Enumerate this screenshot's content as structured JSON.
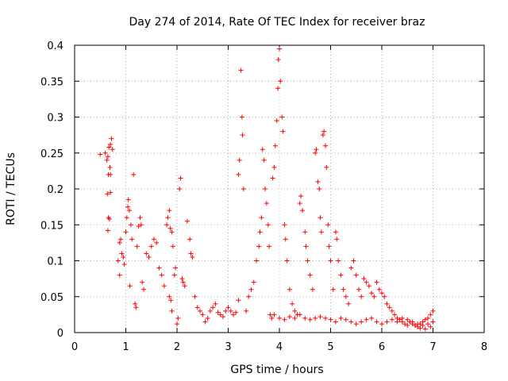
{
  "chart_data": {
    "type": "scatter",
    "title": "Day 274 of 2014, Rate Of TEC Index for receiver braz",
    "xlabel": "GPS time / hours",
    "ylabel": "ROTI / TECUs",
    "xlim": [
      0,
      8
    ],
    "ylim": [
      0,
      0.4
    ],
    "x_ticks": [
      "0",
      "1",
      "2",
      "3",
      "4",
      "5",
      "6",
      "7",
      "8"
    ],
    "y_ticks": [
      "0",
      "0.05",
      "0.1",
      "0.15",
      "0.2",
      "0.25",
      "0.3",
      "0.35",
      "0.4"
    ],
    "grid": true,
    "marker": "+",
    "color": "#ff0000",
    "series": [
      {
        "name": "ROTI",
        "points": [
          [
            0.5,
            0.248
          ],
          [
            0.6,
            0.25
          ],
          [
            0.63,
            0.24
          ],
          [
            0.65,
            0.245
          ],
          [
            0.67,
            0.258
          ],
          [
            0.7,
            0.262
          ],
          [
            0.72,
            0.27
          ],
          [
            0.74,
            0.255
          ],
          [
            0.66,
            0.22
          ],
          [
            0.69,
            0.23
          ],
          [
            0.7,
            0.22
          ],
          [
            0.64,
            0.193
          ],
          [
            0.7,
            0.195
          ],
          [
            0.66,
            0.16
          ],
          [
            0.68,
            0.158
          ],
          [
            0.65,
            0.142
          ],
          [
            0.85,
            0.1
          ],
          [
            0.88,
            0.125
          ],
          [
            0.9,
            0.13
          ],
          [
            0.92,
            0.11
          ],
          [
            0.95,
            0.105
          ],
          [
            0.97,
            0.095
          ],
          [
            0.88,
            0.08
          ],
          [
            1.0,
            0.14
          ],
          [
            1.02,
            0.16
          ],
          [
            1.04,
            0.175
          ],
          [
            1.05,
            0.185
          ],
          [
            1.07,
            0.17
          ],
          [
            1.1,
            0.15
          ],
          [
            1.12,
            0.13
          ],
          [
            1.15,
            0.22
          ],
          [
            1.08,
            0.065
          ],
          [
            1.18,
            0.04
          ],
          [
            1.2,
            0.035
          ],
          [
            1.22,
            0.12
          ],
          [
            1.25,
            0.148
          ],
          [
            1.28,
            0.16
          ],
          [
            1.3,
            0.15
          ],
          [
            1.32,
            0.07
          ],
          [
            1.35,
            0.06
          ],
          [
            1.4,
            0.11
          ],
          [
            1.45,
            0.105
          ],
          [
            1.5,
            0.12
          ],
          [
            1.55,
            0.13
          ],
          [
            1.6,
            0.125
          ],
          [
            1.65,
            0.09
          ],
          [
            1.7,
            0.08
          ],
          [
            1.75,
            0.065
          ],
          [
            1.8,
            0.15
          ],
          [
            1.82,
            0.16
          ],
          [
            1.85,
            0.17
          ],
          [
            1.87,
            0.145
          ],
          [
            1.9,
            0.14
          ],
          [
            1.92,
            0.12
          ],
          [
            1.85,
            0.05
          ],
          [
            1.88,
            0.045
          ],
          [
            1.9,
            0.03
          ],
          [
            1.95,
            0.08
          ],
          [
            1.97,
            0.09
          ],
          [
            2.0,
            0.012
          ],
          [
            2.02,
            0.02
          ],
          [
            2.05,
            0.2
          ],
          [
            2.07,
            0.215
          ],
          [
            2.1,
            0.075
          ],
          [
            2.12,
            0.07
          ],
          [
            2.15,
            0.065
          ],
          [
            2.2,
            0.155
          ],
          [
            2.25,
            0.13
          ],
          [
            2.27,
            0.11
          ],
          [
            2.3,
            0.105
          ],
          [
            2.35,
            0.05
          ],
          [
            2.4,
            0.035
          ],
          [
            2.45,
            0.03
          ],
          [
            2.5,
            0.025
          ],
          [
            2.55,
            0.015
          ],
          [
            2.6,
            0.02
          ],
          [
            2.65,
            0.03
          ],
          [
            2.7,
            0.035
          ],
          [
            2.75,
            0.04
          ],
          [
            2.8,
            0.028
          ],
          [
            2.85,
            0.025
          ],
          [
            2.9,
            0.022
          ],
          [
            2.95,
            0.03
          ],
          [
            3.0,
            0.035
          ],
          [
            3.05,
            0.03
          ],
          [
            3.1,
            0.025
          ],
          [
            3.15,
            0.028
          ],
          [
            3.2,
            0.045
          ],
          [
            3.2,
            0.22
          ],
          [
            3.22,
            0.24
          ],
          [
            3.25,
            0.365
          ],
          [
            3.27,
            0.3
          ],
          [
            3.28,
            0.275
          ],
          [
            3.3,
            0.2
          ],
          [
            3.35,
            0.03
          ],
          [
            3.4,
            0.05
          ],
          [
            3.45,
            0.06
          ],
          [
            3.5,
            0.07
          ],
          [
            3.55,
            0.1
          ],
          [
            3.6,
            0.12
          ],
          [
            3.62,
            0.14
          ],
          [
            3.65,
            0.16
          ],
          [
            3.67,
            0.255
          ],
          [
            3.7,
            0.24
          ],
          [
            3.72,
            0.2
          ],
          [
            3.75,
            0.18
          ],
          [
            3.78,
            0.15
          ],
          [
            3.8,
            0.12
          ],
          [
            3.82,
            0.025
          ],
          [
            3.85,
            0.02
          ],
          [
            3.87,
            0.215
          ],
          [
            3.9,
            0.23
          ],
          [
            3.92,
            0.26
          ],
          [
            3.95,
            0.295
          ],
          [
            3.97,
            0.34
          ],
          [
            3.98,
            0.38
          ],
          [
            4.0,
            0.395
          ],
          [
            4.02,
            0.35
          ],
          [
            4.05,
            0.3
          ],
          [
            4.07,
            0.28
          ],
          [
            4.1,
            0.15
          ],
          [
            4.12,
            0.13
          ],
          [
            4.15,
            0.1
          ],
          [
            4.2,
            0.06
          ],
          [
            4.25,
            0.04
          ],
          [
            4.3,
            0.03
          ],
          [
            4.35,
            0.025
          ],
          [
            4.4,
            0.18
          ],
          [
            4.42,
            0.19
          ],
          [
            4.45,
            0.17
          ],
          [
            4.5,
            0.14
          ],
          [
            4.52,
            0.12
          ],
          [
            4.55,
            0.1
          ],
          [
            4.6,
            0.08
          ],
          [
            4.65,
            0.06
          ],
          [
            4.7,
            0.25
          ],
          [
            4.72,
            0.255
          ],
          [
            4.75,
            0.21
          ],
          [
            4.78,
            0.2
          ],
          [
            4.8,
            0.16
          ],
          [
            4.82,
            0.14
          ],
          [
            4.85,
            0.275
          ],
          [
            4.87,
            0.28
          ],
          [
            4.9,
            0.26
          ],
          [
            4.92,
            0.23
          ],
          [
            4.95,
            0.15
          ],
          [
            4.97,
            0.12
          ],
          [
            5.0,
            0.1
          ],
          [
            5.05,
            0.06
          ],
          [
            5.1,
            0.14
          ],
          [
            5.12,
            0.13
          ],
          [
            5.15,
            0.1
          ],
          [
            5.2,
            0.08
          ],
          [
            5.25,
            0.06
          ],
          [
            5.3,
            0.05
          ],
          [
            5.35,
            0.04
          ],
          [
            5.4,
            0.09
          ],
          [
            5.45,
            0.1
          ],
          [
            5.5,
            0.08
          ],
          [
            5.55,
            0.06
          ],
          [
            5.6,
            0.05
          ],
          [
            5.65,
            0.075
          ],
          [
            5.7,
            0.07
          ],
          [
            5.75,
            0.065
          ],
          [
            5.8,
            0.055
          ],
          [
            5.85,
            0.05
          ],
          [
            5.9,
            0.07
          ],
          [
            5.95,
            0.06
          ],
          [
            6.0,
            0.055
          ],
          [
            6.05,
            0.05
          ],
          [
            6.1,
            0.04
          ],
          [
            6.15,
            0.035
          ],
          [
            6.2,
            0.03
          ],
          [
            6.25,
            0.025
          ],
          [
            6.3,
            0.02
          ],
          [
            6.35,
            0.018
          ],
          [
            6.4,
            0.015
          ],
          [
            6.45,
            0.012
          ],
          [
            6.5,
            0.01
          ],
          [
            6.55,
            0.015
          ],
          [
            6.6,
            0.012
          ],
          [
            6.65,
            0.01
          ],
          [
            6.7,
            0.008
          ],
          [
            6.75,
            0.012
          ],
          [
            6.8,
            0.015
          ],
          [
            6.85,
            0.018
          ],
          [
            6.9,
            0.02
          ],
          [
            6.95,
            0.025
          ],
          [
            7.0,
            0.03
          ],
          [
            3.9,
            0.025
          ],
          [
            4.0,
            0.02
          ],
          [
            4.1,
            0.018
          ],
          [
            4.2,
            0.022
          ],
          [
            4.3,
            0.02
          ],
          [
            4.4,
            0.025
          ],
          [
            4.5,
            0.02
          ],
          [
            4.6,
            0.018
          ],
          [
            4.7,
            0.02
          ],
          [
            4.8,
            0.022
          ],
          [
            4.9,
            0.02
          ],
          [
            5.0,
            0.018
          ],
          [
            5.1,
            0.015
          ],
          [
            5.2,
            0.02
          ],
          [
            5.3,
            0.018
          ],
          [
            5.4,
            0.015
          ],
          [
            5.5,
            0.012
          ],
          [
            5.6,
            0.015
          ],
          [
            5.7,
            0.018
          ],
          [
            5.8,
            0.02
          ],
          [
            5.9,
            0.015
          ],
          [
            6.0,
            0.012
          ],
          [
            6.1,
            0.015
          ],
          [
            6.2,
            0.018
          ],
          [
            6.3,
            0.015
          ],
          [
            6.4,
            0.02
          ],
          [
            6.5,
            0.018
          ],
          [
            6.6,
            0.015
          ],
          [
            6.7,
            0.012
          ],
          [
            6.8,
            0.01
          ],
          [
            6.9,
            0.012
          ],
          [
            7.0,
            0.015
          ],
          [
            6.95,
            0.008
          ],
          [
            6.85,
            0.005
          ],
          [
            6.75,
            0.006
          ]
        ]
      }
    ]
  }
}
